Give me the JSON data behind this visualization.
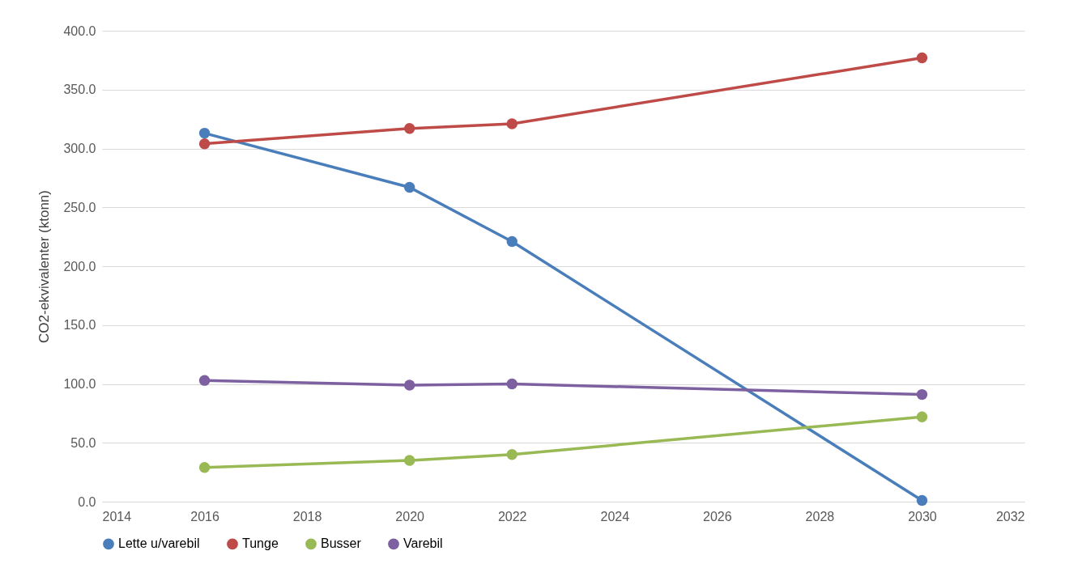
{
  "chart_data": {
    "type": "line",
    "ylabel": "CO2-ekvivalenter (ktonn)",
    "x": [
      2016,
      2020,
      2022,
      2030
    ],
    "series": [
      {
        "name": "Lette u/varebil",
        "color": "#4a7ebb",
        "values": [
          313,
          267,
          221,
          1
        ]
      },
      {
        "name": "Tunge",
        "color": "#be4b48",
        "values": [
          304,
          317,
          321,
          377
        ]
      },
      {
        "name": "Busser",
        "color": "#98b954",
        "values": [
          29,
          35,
          40,
          72
        ]
      },
      {
        "name": "Varebil",
        "color": "#7d60a0",
        "values": [
          103,
          99,
          100,
          91
        ]
      }
    ],
    "xlim": [
      2014,
      2032
    ],
    "xticks": [
      2014,
      2016,
      2018,
      2020,
      2022,
      2024,
      2026,
      2028,
      2030,
      2032
    ],
    "ylim": [
      0,
      400
    ],
    "yticks": [
      {
        "value": 0,
        "label": "0.0"
      },
      {
        "value": 50,
        "label": "50.0"
      },
      {
        "value": 100,
        "label": "100.0"
      },
      {
        "value": 150,
        "label": "150.0"
      },
      {
        "value": 200,
        "label": "200.0"
      },
      {
        "value": 250,
        "label": "250.0"
      },
      {
        "value": 300,
        "label": "300.0"
      },
      {
        "value": 350,
        "label": "350.0"
      },
      {
        "value": 400,
        "label": "400.0"
      }
    ],
    "grid": "y",
    "legend": "bottom",
    "marker": "circle",
    "line_style": "solid"
  }
}
